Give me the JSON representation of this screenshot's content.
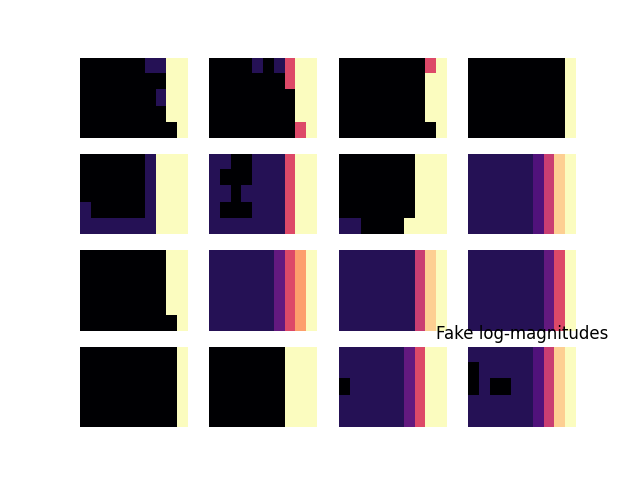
{
  "chart_data": [
    {
      "type": "heatmap",
      "tick_labels": false,
      "zlim": [
        0,
        1
      ],
      "cells": [
        [
          0,
          0,
          0,
          0,
          0,
          0,
          0.15,
          0.15,
          1,
          1
        ],
        [
          0,
          0,
          0,
          0,
          0,
          0,
          0,
          0,
          1,
          1
        ],
        [
          0,
          0,
          0,
          0,
          0,
          0,
          0,
          0.15,
          1,
          1
        ],
        [
          0,
          0,
          0,
          0,
          0,
          0,
          0,
          0,
          1,
          1
        ],
        [
          0,
          0,
          0,
          0,
          0,
          0,
          0,
          0,
          0,
          1
        ]
      ]
    },
    {
      "type": "heatmap",
      "tick_labels": false,
      "zlim": [
        0,
        1
      ],
      "cells": [
        [
          0,
          0,
          0,
          0,
          0.15,
          0,
          0.15,
          0.6,
          1,
          1
        ],
        [
          0,
          0,
          0,
          0,
          0,
          0,
          0,
          0.6,
          1,
          1
        ],
        [
          0,
          0,
          0,
          0,
          0,
          0,
          0,
          0,
          1,
          1
        ],
        [
          0,
          0,
          0,
          0,
          0,
          0,
          0,
          0,
          1,
          1
        ],
        [
          0,
          0,
          0,
          0,
          0,
          0,
          0,
          0,
          0.6,
          1
        ]
      ]
    },
    {
      "type": "heatmap",
      "tick_labels": false,
      "zlim": [
        0,
        1
      ],
      "cells": [
        [
          0,
          0,
          0,
          0,
          0,
          0,
          0,
          0,
          0.6,
          1
        ],
        [
          0,
          0,
          0,
          0,
          0,
          0,
          0,
          0,
          1,
          1
        ],
        [
          0,
          0,
          0,
          0,
          0,
          0,
          0,
          0,
          1,
          1
        ],
        [
          0,
          0,
          0,
          0,
          0,
          0,
          0,
          0,
          1,
          1
        ],
        [
          0,
          0,
          0,
          0,
          0,
          0,
          0,
          0,
          0,
          1
        ]
      ]
    },
    {
      "type": "heatmap",
      "tick_labels": false,
      "zlim": [
        0,
        1
      ],
      "cells": [
        [
          0,
          0,
          0,
          0,
          0,
          0,
          0,
          0,
          0,
          1
        ],
        [
          0,
          0,
          0,
          0,
          0,
          0,
          0,
          0,
          0,
          1
        ],
        [
          0,
          0,
          0,
          0,
          0,
          0,
          0,
          0,
          0,
          1
        ],
        [
          0,
          0,
          0,
          0,
          0,
          0,
          0,
          0,
          0,
          1
        ],
        [
          0,
          0,
          0,
          0,
          0,
          0,
          0,
          0,
          0,
          1
        ]
      ]
    },
    {
      "type": "heatmap",
      "tick_labels": false,
      "zlim": [
        0,
        1
      ],
      "cells": [
        [
          0,
          0,
          0,
          0,
          0,
          0,
          0.15,
          1,
          1,
          1
        ],
        [
          0,
          0,
          0,
          0,
          0,
          0,
          0.15,
          1,
          1,
          1
        ],
        [
          0,
          0,
          0,
          0,
          0,
          0,
          0.15,
          1,
          1,
          1
        ],
        [
          0.15,
          0,
          0,
          0,
          0,
          0,
          0.15,
          1,
          1,
          1
        ],
        [
          0.15,
          0.15,
          0.15,
          0.15,
          0.15,
          0.15,
          0.15,
          1,
          1,
          1
        ]
      ]
    },
    {
      "type": "heatmap",
      "tick_labels": false,
      "zlim": [
        0,
        1
      ],
      "cells": [
        [
          0.15,
          0.15,
          0,
          0,
          0.15,
          0.15,
          0.15,
          0.6,
          1,
          1
        ],
        [
          0.15,
          0,
          0,
          0,
          0.15,
          0.15,
          0.15,
          0.6,
          1,
          1
        ],
        [
          0.15,
          0.15,
          0,
          0.15,
          0.15,
          0.15,
          0.15,
          0.6,
          1,
          1
        ],
        [
          0.15,
          0,
          0,
          0,
          0.15,
          0.15,
          0.15,
          0.6,
          1,
          1
        ],
        [
          0.15,
          0.15,
          0.15,
          0.15,
          0.15,
          0.15,
          0.15,
          0.6,
          1,
          1
        ]
      ]
    },
    {
      "type": "heatmap",
      "tick_labels": false,
      "zlim": [
        0,
        1
      ],
      "cells": [
        [
          0,
          0,
          0,
          0,
          0,
          0,
          0,
          1,
          1,
          1
        ],
        [
          0,
          0,
          0,
          0,
          0,
          0,
          0,
          1,
          1,
          1
        ],
        [
          0,
          0,
          0,
          0,
          0,
          0,
          0,
          1,
          1,
          1
        ],
        [
          0,
          0,
          0,
          0,
          0,
          0,
          0,
          1,
          1,
          1
        ],
        [
          0.15,
          0.15,
          0,
          0,
          0,
          0,
          1,
          1,
          1,
          1
        ]
      ]
    },
    {
      "type": "heatmap",
      "tick_labels": false,
      "zlim": [
        0,
        1
      ],
      "cells": [
        [
          0.15,
          0.15,
          0.15,
          0.15,
          0.15,
          0.15,
          0.25,
          0.55,
          0.9,
          1
        ],
        [
          0.15,
          0.15,
          0.15,
          0.15,
          0.15,
          0.15,
          0.25,
          0.55,
          0.9,
          1
        ],
        [
          0.15,
          0.15,
          0.15,
          0.15,
          0.15,
          0.15,
          0.25,
          0.55,
          0.9,
          1
        ],
        [
          0.15,
          0.15,
          0.15,
          0.15,
          0.15,
          0.15,
          0.25,
          0.55,
          0.9,
          1
        ],
        [
          0.15,
          0.15,
          0.15,
          0.15,
          0.15,
          0.15,
          0.25,
          0.55,
          0.9,
          1
        ]
      ]
    },
    {
      "type": "heatmap",
      "tick_labels": false,
      "zlim": [
        0,
        1
      ],
      "cells": [
        [
          0,
          0,
          0,
          0,
          0,
          0,
          0,
          0,
          1,
          1
        ],
        [
          0,
          0,
          0,
          0,
          0,
          0,
          0,
          0,
          1,
          1
        ],
        [
          0,
          0,
          0,
          0,
          0,
          0,
          0,
          0,
          1,
          1
        ],
        [
          0,
          0,
          0,
          0,
          0,
          0,
          0,
          0,
          1,
          1
        ],
        [
          0,
          0,
          0,
          0,
          0,
          0,
          0,
          0,
          0,
          1
        ]
      ]
    },
    {
      "type": "heatmap",
      "tick_labels": false,
      "zlim": [
        0,
        1
      ],
      "cells": [
        [
          0.15,
          0.15,
          0.15,
          0.15,
          0.15,
          0.15,
          0.3,
          0.6,
          0.8,
          1
        ],
        [
          0.15,
          0.15,
          0.15,
          0.15,
          0.15,
          0.15,
          0.3,
          0.6,
          0.8,
          1
        ],
        [
          0.15,
          0.15,
          0.15,
          0.15,
          0.15,
          0.15,
          0.3,
          0.6,
          0.8,
          1
        ],
        [
          0.15,
          0.15,
          0.15,
          0.15,
          0.15,
          0.15,
          0.3,
          0.6,
          0.8,
          1
        ],
        [
          0.15,
          0.15,
          0.15,
          0.15,
          0.15,
          0.15,
          0.3,
          0.6,
          0.8,
          1
        ]
      ]
    },
    {
      "type": "heatmap",
      "tick_labels": false,
      "zlim": [
        0,
        1
      ],
      "cells": [
        [
          0.15,
          0.15,
          0.15,
          0.15,
          0.15,
          0.15,
          0.15,
          0.55,
          0.9,
          1
        ],
        [
          0.15,
          0.15,
          0.15,
          0.15,
          0.15,
          0.15,
          0.15,
          0.55,
          0.9,
          1
        ],
        [
          0.15,
          0.15,
          0.15,
          0.15,
          0.15,
          0.15,
          0.15,
          0.55,
          0.9,
          1
        ],
        [
          0.15,
          0.15,
          0.15,
          0.15,
          0.15,
          0.15,
          0.15,
          0.55,
          0.9,
          1
        ],
        [
          0.15,
          0.15,
          0.15,
          0.15,
          0.15,
          0.15,
          0.15,
          0.55,
          0.9,
          1
        ]
      ]
    },
    {
      "type": "heatmap",
      "tick_labels": false,
      "zlim": [
        0,
        1
      ],
      "cells": [
        [
          0.15,
          0.15,
          0.15,
          0.15,
          0.15,
          0.15,
          0.15,
          0.3,
          0.6,
          1
        ],
        [
          0.15,
          0.15,
          0.15,
          0.15,
          0.15,
          0.15,
          0.15,
          0.3,
          0.6,
          1
        ],
        [
          0.15,
          0.15,
          0.15,
          0.15,
          0.15,
          0.15,
          0.15,
          0.3,
          0.6,
          1
        ],
        [
          0.15,
          0.15,
          0.15,
          0.15,
          0.15,
          0.15,
          0.15,
          0.3,
          0.6,
          1
        ],
        [
          0.15,
          0.15,
          0.15,
          0.15,
          0.15,
          0.15,
          0.15,
          0.3,
          0.6,
          1
        ]
      ]
    },
    {
      "type": "heatmap",
      "tick_labels": false,
      "zlim": [
        0,
        1
      ],
      "cells": [
        [
          0,
          0,
          0,
          0,
          0,
          0,
          0,
          0,
          0,
          1
        ],
        [
          0,
          0,
          0,
          0,
          0,
          0,
          0,
          0,
          0,
          1
        ],
        [
          0,
          0,
          0,
          0,
          0,
          0,
          0,
          0,
          0,
          1
        ],
        [
          0,
          0,
          0,
          0,
          0,
          0,
          0,
          0,
          0,
          1
        ],
        [
          0,
          0,
          0,
          0,
          0,
          0,
          0,
          0,
          0,
          1
        ]
      ]
    },
    {
      "type": "heatmap",
      "tick_labels": false,
      "zlim": [
        0,
        1
      ],
      "cells": [
        [
          0,
          0,
          0,
          0,
          0,
          0,
          0,
          1,
          1,
          1
        ],
        [
          0,
          0,
          0,
          0,
          0,
          0,
          0,
          1,
          1,
          1
        ],
        [
          0,
          0,
          0,
          0,
          0,
          0,
          0,
          1,
          1,
          1
        ],
        [
          0,
          0,
          0,
          0,
          0,
          0,
          0,
          1,
          1,
          1
        ],
        [
          0,
          0,
          0,
          0,
          0,
          0,
          0,
          1,
          1,
          1
        ]
      ]
    },
    {
      "type": "heatmap",
      "tick_labels": false,
      "zlim": [
        0,
        1
      ],
      "cells": [
        [
          0.15,
          0.15,
          0.15,
          0.15,
          0.15,
          0.15,
          0.3,
          0.6,
          1,
          1
        ],
        [
          0.15,
          0.15,
          0.15,
          0.15,
          0.15,
          0.15,
          0.3,
          0.6,
          1,
          1
        ],
        [
          0,
          0.15,
          0.15,
          0.15,
          0.15,
          0.15,
          0.3,
          0.6,
          1,
          1
        ],
        [
          0.15,
          0.15,
          0.15,
          0.15,
          0.15,
          0.15,
          0.3,
          0.6,
          1,
          1
        ],
        [
          0.15,
          0.15,
          0.15,
          0.15,
          0.15,
          0.15,
          0.3,
          0.6,
          1,
          1
        ]
      ]
    },
    {
      "type": "heatmap",
      "tick_labels": false,
      "zlim": [
        0,
        1
      ],
      "title": "Fake log-magnitudes",
      "cells": [
        [
          0.15,
          0.15,
          0.15,
          0.15,
          0.15,
          0.15,
          0.25,
          0.55,
          0.9,
          1
        ],
        [
          0,
          0.15,
          0.15,
          0.15,
          0.15,
          0.15,
          0.25,
          0.55,
          0.9,
          1
        ],
        [
          0,
          0.15,
          0,
          0,
          0.15,
          0.15,
          0.25,
          0.55,
          0.9,
          1
        ],
        [
          0.15,
          0.15,
          0.15,
          0.15,
          0.15,
          0.15,
          0.25,
          0.55,
          0.9,
          1
        ],
        [
          0.15,
          0.15,
          0.15,
          0.15,
          0.15,
          0.15,
          0.25,
          0.55,
          0.9,
          1
        ]
      ]
    }
  ]
}
